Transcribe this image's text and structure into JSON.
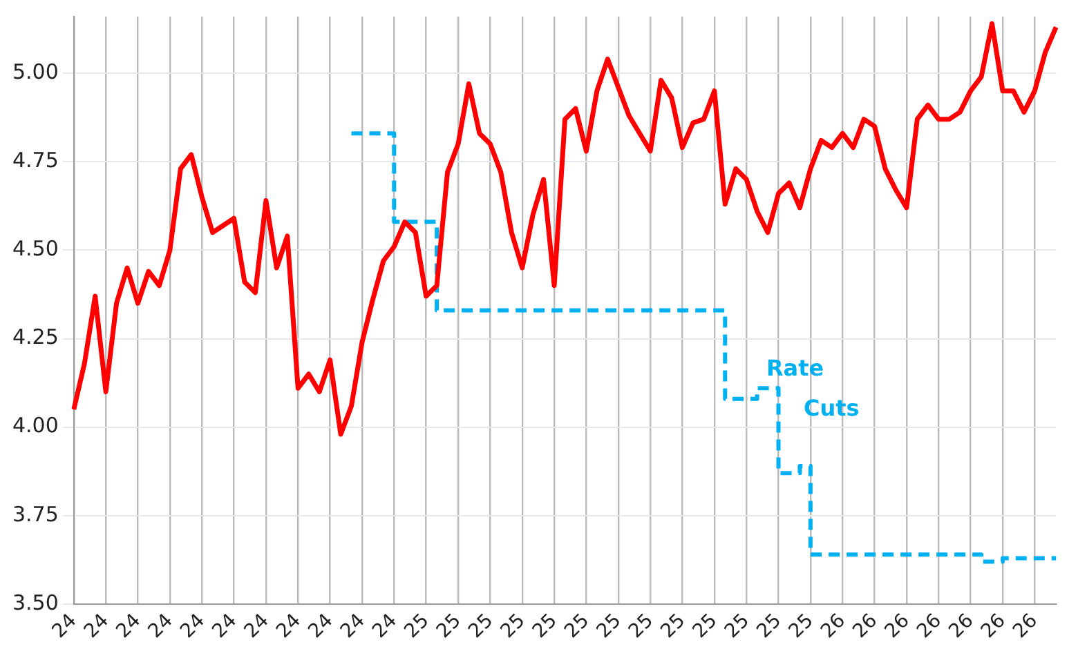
{
  "chart_data": {
    "type": "line",
    "categories": [
      "24",
      null,
      null,
      "24",
      null,
      null,
      "24",
      null,
      null,
      "24",
      null,
      null,
      "24",
      null,
      null,
      "24",
      null,
      null,
      "24",
      null,
      null,
      "24",
      null,
      null,
      "24",
      null,
      null,
      "24",
      null,
      null,
      "24",
      null,
      null,
      "25",
      null,
      null,
      "25",
      null,
      null,
      "25",
      null,
      null,
      "25",
      null,
      null,
      "25",
      null,
      null,
      "25",
      null,
      null,
      "25",
      null,
      null,
      "25",
      null,
      null,
      "25",
      null,
      null,
      "25",
      null,
      null,
      "25",
      null,
      null,
      "25",
      null,
      null,
      "25",
      null,
      null,
      "26",
      null,
      null,
      "26",
      null,
      null,
      "26",
      null,
      null,
      "26",
      null,
      null,
      "26",
      null,
      null,
      "26",
      null,
      null,
      "26",
      null,
      null
    ],
    "series": [
      {
        "type": "line",
        "color": "#ff0000",
        "values": [
          4.05,
          4.18,
          4.37,
          4.1,
          4.35,
          4.45,
          4.35,
          4.44,
          4.4,
          4.5,
          4.73,
          4.77,
          4.65,
          4.55,
          4.57,
          4.59,
          4.41,
          4.38,
          4.64,
          4.45,
          4.54,
          4.11,
          4.15,
          4.1,
          4.19,
          3.98,
          4.06,
          4.24,
          4.36,
          4.47,
          4.51,
          4.58,
          4.55,
          4.37,
          4.4,
          4.72,
          4.8,
          4.97,
          4.83,
          4.8,
          4.72,
          4.55,
          4.45,
          4.6,
          4.7,
          4.4,
          4.87,
          4.9,
          4.78,
          4.95,
          5.04,
          4.96,
          4.88,
          4.83,
          4.78,
          4.98,
          4.93,
          4.79,
          4.86,
          4.87,
          4.95,
          4.63,
          4.73,
          4.7,
          4.61,
          4.55,
          4.66,
          4.69,
          4.62,
          4.73,
          4.81,
          4.79,
          4.83,
          4.79,
          4.87,
          4.85,
          4.73,
          4.67,
          4.62,
          4.87,
          4.91,
          4.87,
          4.87,
          4.89,
          4.95,
          4.99,
          5.14,
          4.95,
          4.95,
          4.89,
          4.95,
          5.06,
          5.13
        ]
      },
      {
        "type": "step",
        "color": "#00b0f0",
        "line_style": "dashed",
        "values": [
          null,
          null,
          null,
          null,
          null,
          null,
          null,
          null,
          null,
          null,
          null,
          null,
          null,
          null,
          null,
          null,
          null,
          null,
          null,
          null,
          null,
          null,
          null,
          null,
          null,
          null,
          4.83,
          4.83,
          4.83,
          4.83,
          4.83,
          4.58,
          4.58,
          4.58,
          4.58,
          4.33,
          4.33,
          4.33,
          4.33,
          4.33,
          4.33,
          4.33,
          4.33,
          4.33,
          4.33,
          4.33,
          4.33,
          4.33,
          4.33,
          4.33,
          4.33,
          4.33,
          4.33,
          4.33,
          4.33,
          4.33,
          4.33,
          4.33,
          4.33,
          4.33,
          4.33,
          4.33,
          4.08,
          4.08,
          4.08,
          4.11,
          4.11,
          3.87,
          3.87,
          3.89,
          3.64,
          3.64,
          3.64,
          3.64,
          3.64,
          3.64,
          3.64,
          3.64,
          3.64,
          3.64,
          3.64,
          3.64,
          3.64,
          3.64,
          3.64,
          3.64,
          3.62,
          3.62,
          3.63,
          3.63,
          3.63,
          3.63,
          3.63
        ]
      }
    ],
    "ylim": [
      3.5,
      5.16
    ],
    "yticks": [
      {
        "value": 3.5,
        "label": "3.50"
      },
      {
        "value": 3.75,
        "label": "3.75"
      },
      {
        "value": 4,
        "label": "4.00"
      },
      {
        "value": 4.25,
        "label": "4.25"
      },
      {
        "value": 4.5,
        "label": "4.50"
      },
      {
        "value": 4.75,
        "label": "4.75"
      },
      {
        "value": 5,
        "label": "5.00"
      }
    ],
    "grid": true,
    "legend": false,
    "annotations": [
      "Rate Cuts"
    ]
  }
}
